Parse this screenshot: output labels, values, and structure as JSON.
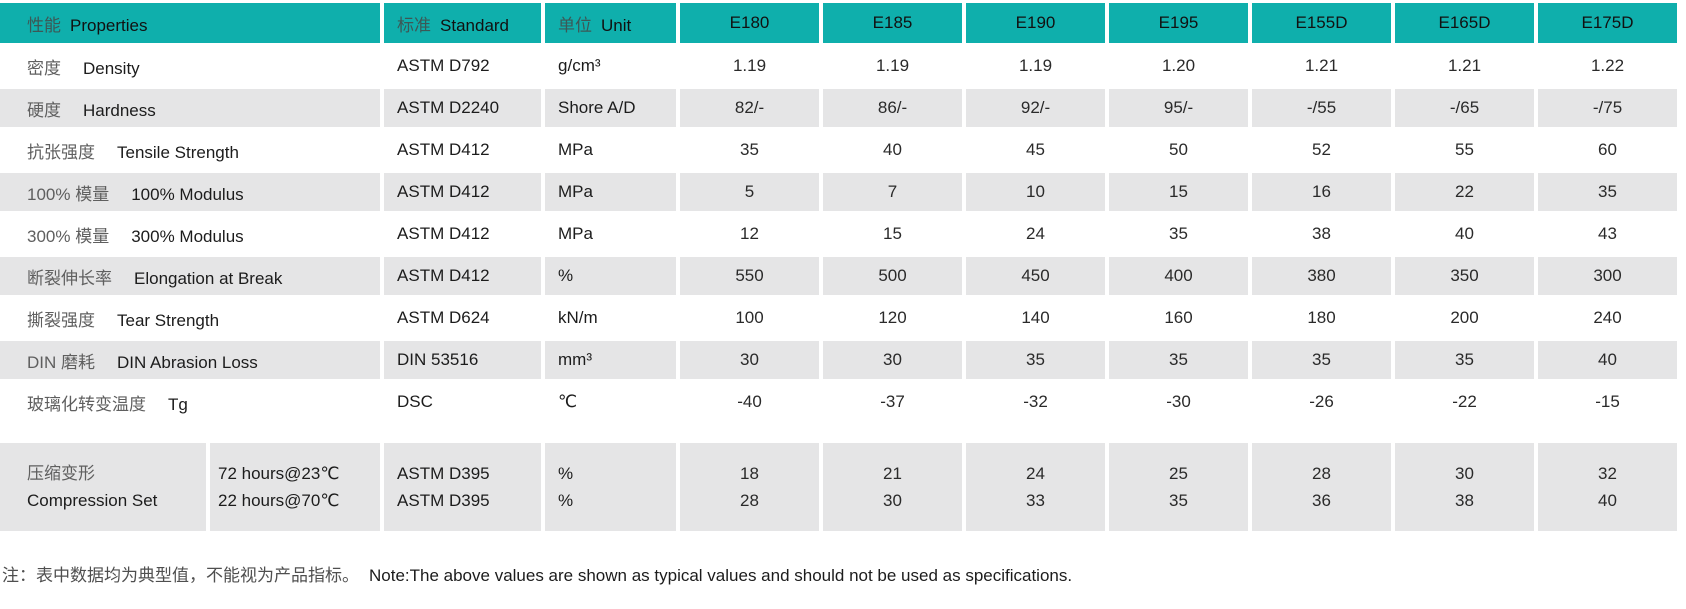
{
  "theme": {
    "header_teal": "#0FAFAC",
    "row_gray": "#E5E5E6",
    "row_white": "#FFFFFF",
    "text_dark": "#1c1c1c",
    "text_zh_gray": "#5f5f5f"
  },
  "table": {
    "headers": {
      "properties_zh": "性能",
      "properties_en": "Properties",
      "standard_zh": "标准",
      "standard_en": "Standard",
      "unit_zh": "单位",
      "unit_en": "Unit",
      "grades": [
        "E180",
        "E185",
        "E190",
        "E195",
        "E155D",
        "E165D",
        "E175D"
      ]
    },
    "rows": [
      {
        "zh": "密度",
        "en": "Density",
        "standard": "ASTM D792",
        "unit": "g/cm³",
        "values": [
          "1.19",
          "1.19",
          "1.19",
          "1.20",
          "1.21",
          "1.21",
          "1.22"
        ]
      },
      {
        "zh": "硬度",
        "en": "Hardness",
        "standard": "ASTM D2240",
        "unit": "Shore A/D",
        "values": [
          "82/-",
          "86/-",
          "92/-",
          "95/-",
          "-/55",
          "-/65",
          "-/75"
        ]
      },
      {
        "zh": "抗张强度",
        "en": "Tensile Strength",
        "standard": "ASTM D412",
        "unit": "MPa",
        "values": [
          "35",
          "40",
          "45",
          "50",
          "52",
          "55",
          "60"
        ]
      },
      {
        "zh": "100% 模量",
        "en": "100% Modulus",
        "standard": "ASTM D412",
        "unit": "MPa",
        "values": [
          "5",
          "7",
          "10",
          "15",
          "16",
          "22",
          "35"
        ]
      },
      {
        "zh": "300% 模量",
        "en": "300% Modulus",
        "standard": "ASTM D412",
        "unit": "MPa",
        "values": [
          "12",
          "15",
          "24",
          "35",
          "38",
          "40",
          "43"
        ]
      },
      {
        "zh": "断裂伸长率",
        "en": "Elongation at Break",
        "standard": "ASTM D412",
        "unit": "%",
        "values": [
          "550",
          "500",
          "450",
          "400",
          "380",
          "350",
          "300"
        ]
      },
      {
        "zh": "撕裂强度",
        "en": "Tear Strength",
        "standard": "ASTM D624",
        "unit": "kN/m",
        "values": [
          "100",
          "120",
          "140",
          "160",
          "180",
          "200",
          "240"
        ]
      },
      {
        "zh": "DIN 磨耗",
        "en": "DIN Abrasion Loss",
        "standard": "DIN 53516",
        "unit": "mm³",
        "values": [
          "30",
          "30",
          "35",
          "35",
          "35",
          "35",
          "40"
        ]
      },
      {
        "zh": "玻璃化转变温度",
        "en": "Tg",
        "standard": "DSC",
        "unit": "℃",
        "values": [
          "-40",
          "-37",
          "-32",
          "-30",
          "-26",
          "-22",
          "-15"
        ]
      }
    ],
    "compression_row": {
      "zh": "压缩变形",
      "en": "Compression Set",
      "conditions": [
        "72 hours@23℃",
        "22 hours@70℃"
      ],
      "standards": [
        "ASTM D395",
        "ASTM D395"
      ],
      "units": [
        "%",
        "%"
      ],
      "values": [
        [
          "18",
          "28"
        ],
        [
          "21",
          "30"
        ],
        [
          "24",
          "33"
        ],
        [
          "25",
          "35"
        ],
        [
          "28",
          "36"
        ],
        [
          "30",
          "38"
        ],
        [
          "32",
          "40"
        ]
      ]
    }
  },
  "note_zh": "注：表中数据均为典型值，不能视为产品指标。",
  "note_en": "Note:The above values are shown as typical values and should not be used as specifications."
}
